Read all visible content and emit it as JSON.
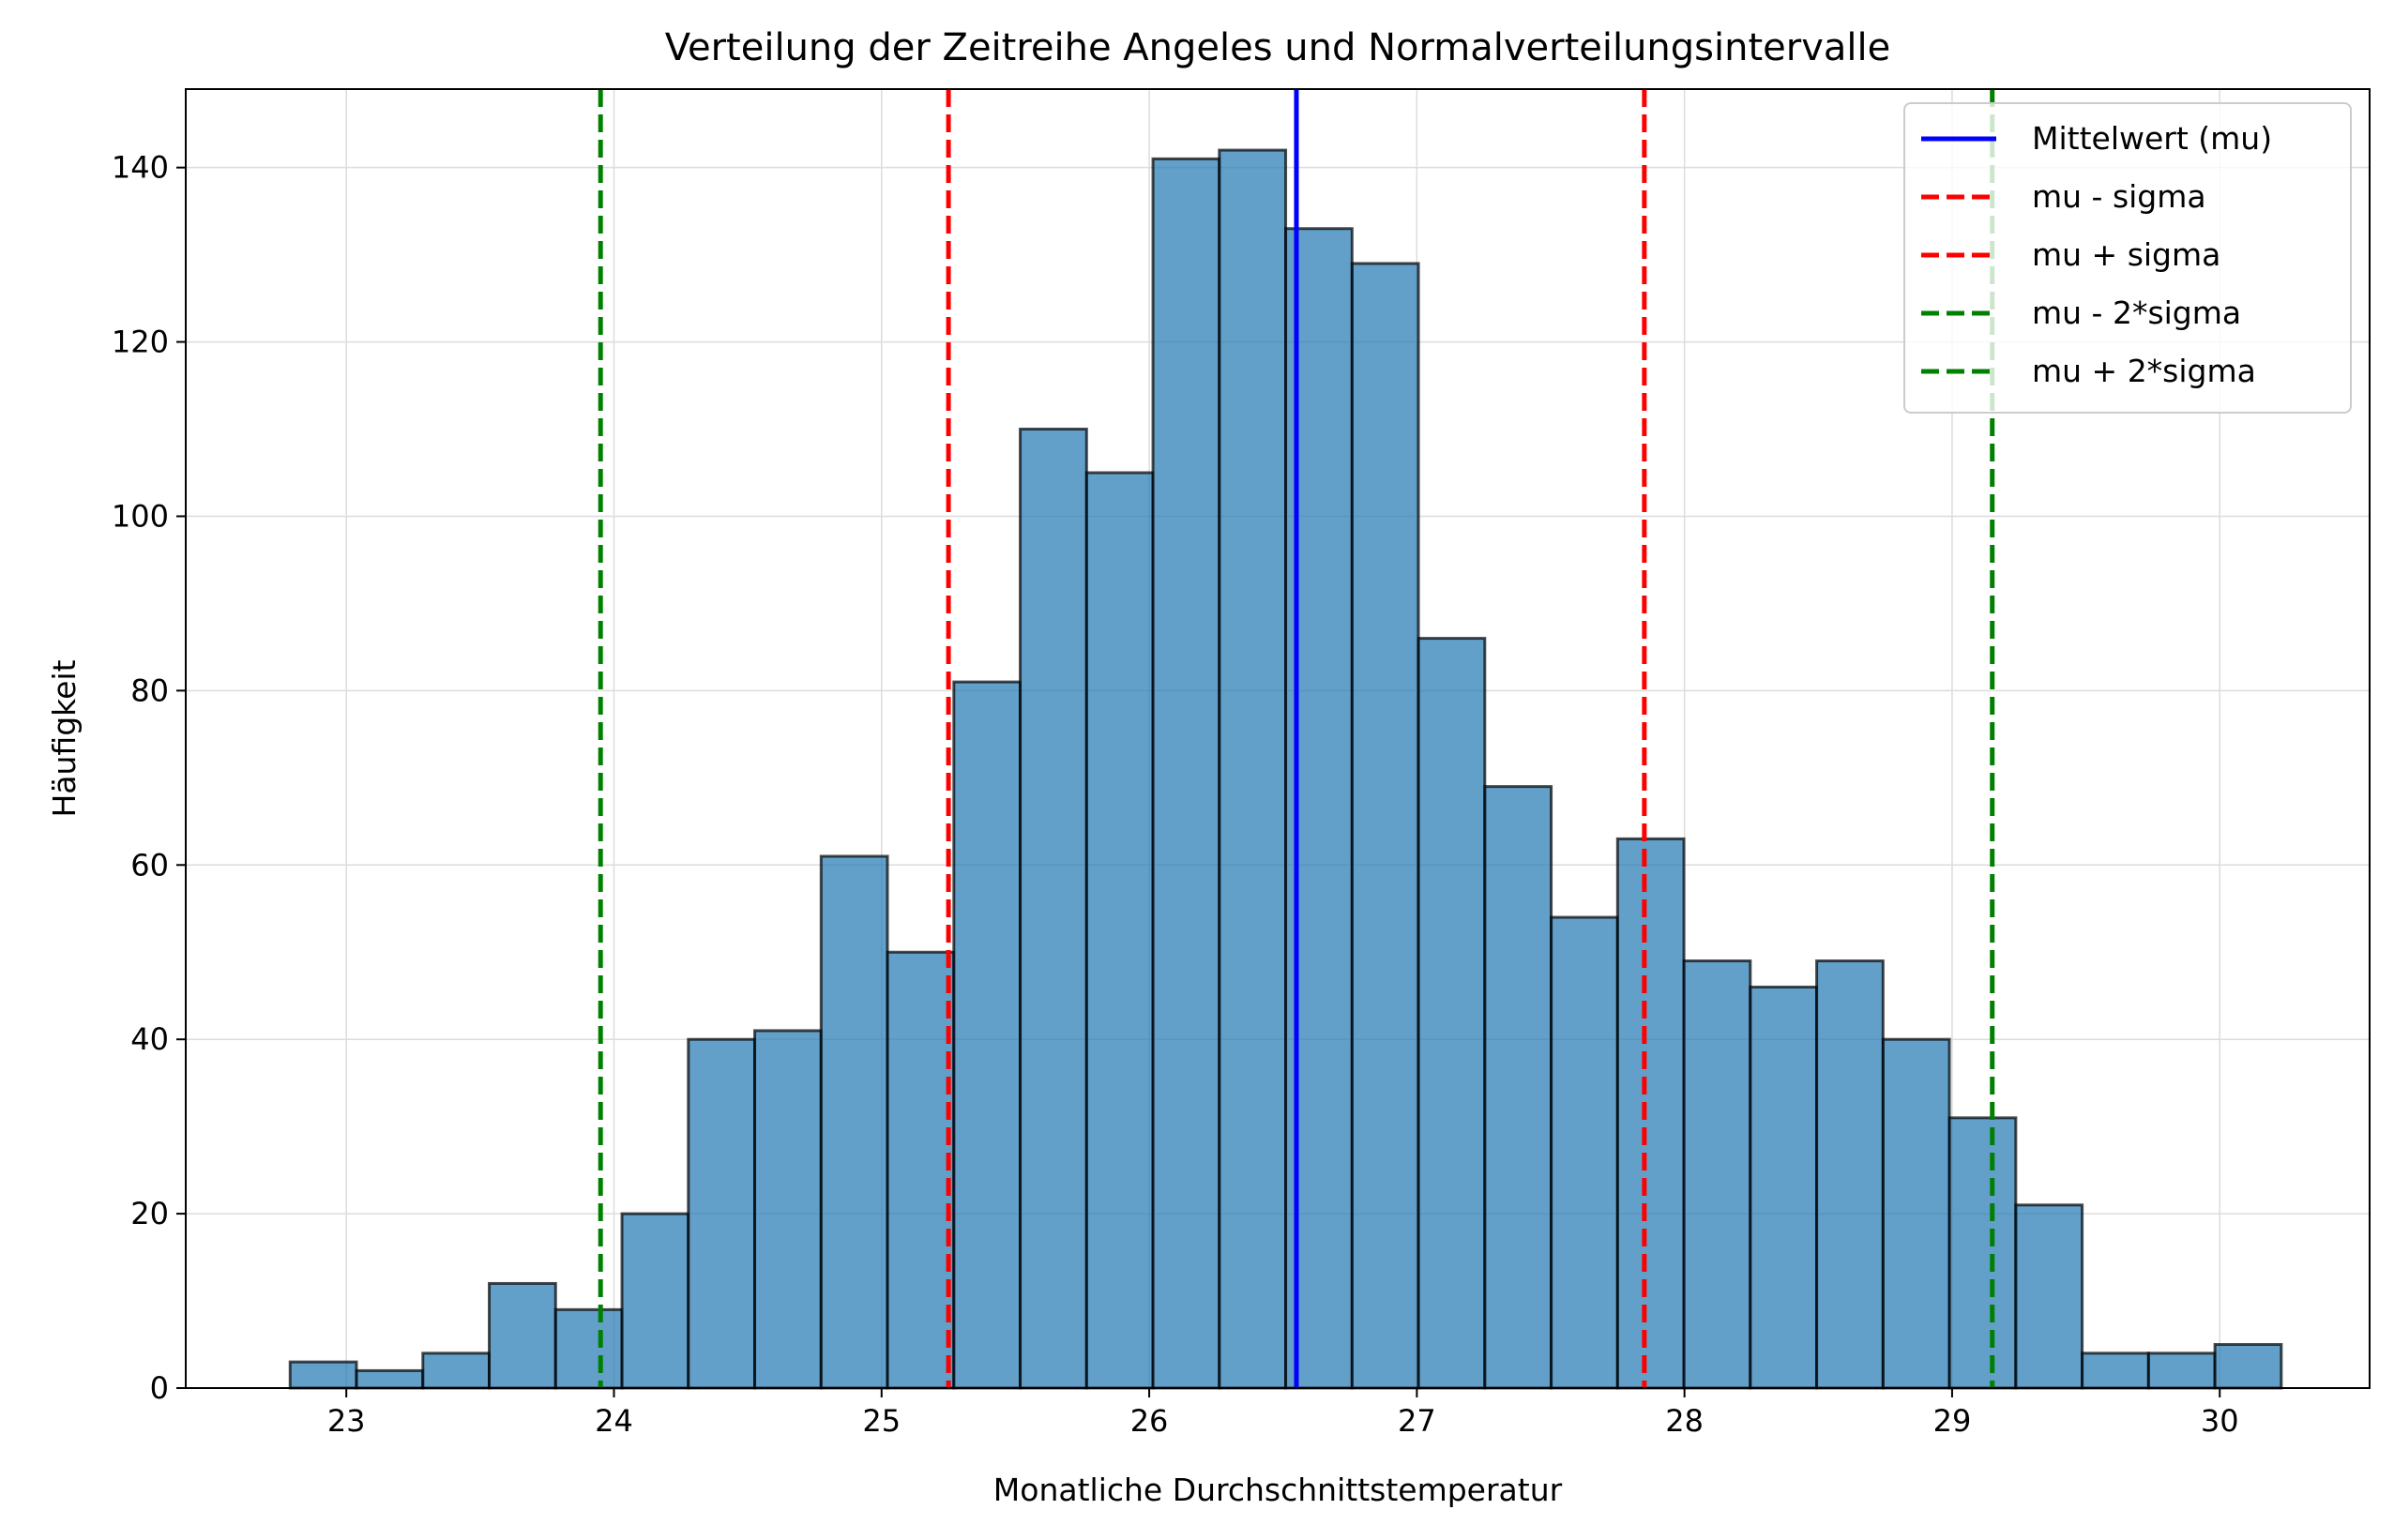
{
  "chart_data": {
    "type": "bar",
    "histogram": true,
    "title": "Verteilung der Zeitreihe Angeles und Normalverteilungsintervalle",
    "xlabel": "Monatliche Durchschnittstemperatur",
    "ylabel": "Häufigkeit",
    "xlim": [
      22.4,
      30.56
    ],
    "ylim": [
      0,
      149
    ],
    "xticks": [
      23,
      24,
      25,
      26,
      27,
      28,
      29,
      30
    ],
    "xtick_labels": [
      "23",
      "24",
      "25",
      "26",
      "27",
      "28",
      "29",
      "30"
    ],
    "yticks": [
      0,
      20,
      40,
      60,
      80,
      100,
      120,
      140
    ],
    "ytick_labels": [
      "0",
      "20",
      "40",
      "60",
      "80",
      "100",
      "120",
      "140"
    ],
    "grid": true,
    "bar_color": "#1f77b4",
    "bar_edge_color": "#000000",
    "bin_start": 22.79,
    "bin_width": 0.248,
    "counts": [
      3,
      2,
      4,
      12,
      9,
      20,
      40,
      41,
      61,
      50,
      81,
      110,
      105,
      141,
      142,
      133,
      129,
      86,
      69,
      54,
      63,
      49,
      46,
      49,
      40,
      31,
      21,
      4,
      4,
      5
    ],
    "reference_lines": [
      {
        "name": "Mittelwert (mu)",
        "x": 26.55,
        "color": "#0000ff",
        "style": "solid"
      },
      {
        "name": "mu - sigma",
        "x": 25.25,
        "color": "#ff0000",
        "style": "dashed"
      },
      {
        "name": "mu + sigma",
        "x": 27.85,
        "color": "#ff0000",
        "style": "dashed"
      },
      {
        "name": "mu - 2*sigma",
        "x": 23.95,
        "color": "#008000",
        "style": "dashed"
      },
      {
        "name": "mu + 2*sigma",
        "x": 29.15,
        "color": "#008000",
        "style": "dashed"
      }
    ],
    "legend": {
      "position": "top-right",
      "entries": [
        "Mittelwert (mu)",
        "mu - sigma",
        "mu + sigma",
        "mu - 2*sigma",
        "mu + 2*sigma"
      ]
    }
  }
}
